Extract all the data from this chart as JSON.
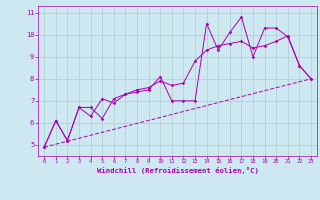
{
  "xlabel": "Windchill (Refroidissement éolien,°C)",
  "bg_color": "#cde8f0",
  "line_color": "#aa00aa",
  "grid_color": "#aacccc",
  "xlim": [
    -0.5,
    23.5
  ],
  "ylim": [
    4.5,
    11.3
  ],
  "yticks": [
    5,
    6,
    7,
    8,
    9,
    10,
    11
  ],
  "xticks": [
    0,
    1,
    2,
    3,
    4,
    5,
    6,
    7,
    8,
    9,
    10,
    11,
    12,
    13,
    14,
    15,
    16,
    17,
    18,
    19,
    20,
    21,
    22,
    23
  ],
  "series1": [
    [
      0,
      4.9
    ],
    [
      1,
      6.1
    ],
    [
      2,
      5.2
    ],
    [
      3,
      6.7
    ],
    [
      4,
      6.7
    ],
    [
      5,
      6.2
    ],
    [
      6,
      7.1
    ],
    [
      7,
      7.3
    ],
    [
      8,
      7.4
    ],
    [
      9,
      7.5
    ],
    [
      10,
      8.1
    ],
    [
      11,
      7.0
    ],
    [
      12,
      7.0
    ],
    [
      13,
      7.0
    ],
    [
      14,
      10.5
    ],
    [
      15,
      9.3
    ],
    [
      16,
      10.1
    ],
    [
      17,
      10.8
    ],
    [
      18,
      9.0
    ],
    [
      19,
      10.3
    ],
    [
      20,
      10.3
    ],
    [
      21,
      9.9
    ],
    [
      22,
      8.6
    ],
    [
      23,
      8.0
    ]
  ],
  "series2": [
    [
      0,
      4.9
    ],
    [
      1,
      6.1
    ],
    [
      2,
      5.2
    ],
    [
      3,
      6.7
    ],
    [
      4,
      6.3
    ],
    [
      5,
      7.1
    ],
    [
      6,
      6.9
    ],
    [
      7,
      7.3
    ],
    [
      8,
      7.5
    ],
    [
      9,
      7.6
    ],
    [
      10,
      7.9
    ],
    [
      11,
      7.7
    ],
    [
      12,
      7.8
    ],
    [
      13,
      8.8
    ],
    [
      14,
      9.3
    ],
    [
      15,
      9.5
    ],
    [
      16,
      9.6
    ],
    [
      17,
      9.7
    ],
    [
      18,
      9.4
    ],
    [
      19,
      9.5
    ],
    [
      20,
      9.7
    ],
    [
      21,
      9.95
    ],
    [
      22,
      8.6
    ],
    [
      23,
      8.0
    ]
  ],
  "series3": [
    [
      0,
      4.9
    ],
    [
      23,
      8.0
    ]
  ]
}
